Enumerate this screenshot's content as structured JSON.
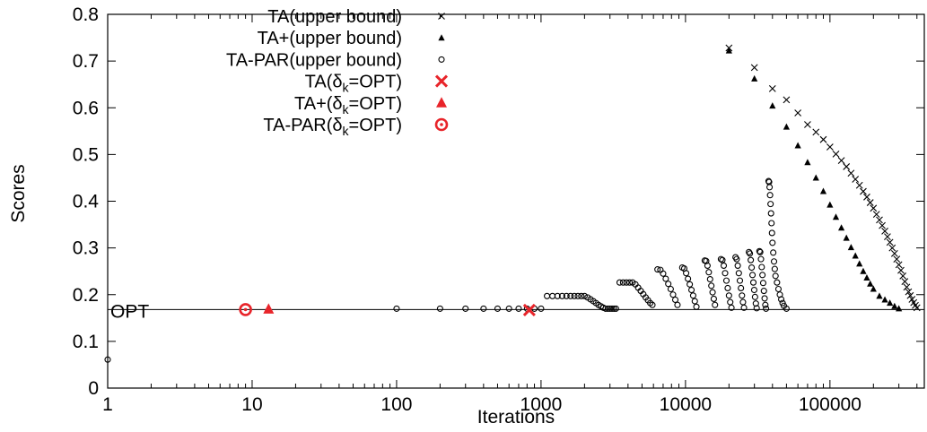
{
  "chart_data": {
    "type": "scatter",
    "title": "",
    "xlabel": "Iterations",
    "ylabel": "Scores",
    "xscale": "log",
    "xlim": [
      1,
      450000
    ],
    "ylim": [
      0,
      0.8
    ],
    "x_ticks": [
      1,
      10,
      100,
      1000,
      10000,
      100000
    ],
    "x_tick_labels": [
      "1",
      "10",
      "100",
      "1000",
      "10000",
      "100000"
    ],
    "y_ticks": [
      0,
      0.1,
      0.2,
      0.3,
      0.4,
      0.5,
      0.6,
      0.7,
      0.8
    ],
    "y_tick_labels": [
      "0",
      "0.1",
      "0.2",
      "0.3",
      "0.4",
      "0.5",
      "0.6",
      "0.7",
      "0.8"
    ],
    "grid": false,
    "legend_position": "top-left",
    "reference_line": {
      "label": "OPT",
      "y": 0.168
    },
    "legend": [
      {
        "main": "TA(upper bound)",
        "sub": "",
        "tail": ""
      },
      {
        "main": "TA+(upper bound)",
        "sub": "",
        "tail": ""
      },
      {
        "main": "TA-PAR(upper bound)",
        "sub": "",
        "tail": ""
      },
      {
        "main": "TA(δ",
        "sub": "k",
        "tail": "=OPT)"
      },
      {
        "main": "TA+(δ",
        "sub": "k",
        "tail": "=OPT)"
      },
      {
        "main": "TA-PAR(δ",
        "sub": "k",
        "tail": "=OPT)"
      }
    ],
    "series": [
      {
        "name": "TA(upper bound)",
        "marker": "x",
        "color": "#000000",
        "points": [
          [
            20000,
            0.728
          ],
          [
            30000,
            0.686
          ],
          [
            40000,
            0.641
          ],
          [
            50000,
            0.617
          ],
          [
            60000,
            0.589
          ],
          [
            70000,
            0.564
          ],
          [
            80000,
            0.548
          ],
          [
            90000,
            0.532
          ],
          [
            100000,
            0.516
          ],
          [
            110000,
            0.501
          ],
          [
            120000,
            0.487
          ],
          [
            130000,
            0.474
          ],
          [
            140000,
            0.46
          ],
          [
            150000,
            0.447
          ],
          [
            160000,
            0.434
          ],
          [
            170000,
            0.421
          ],
          [
            180000,
            0.409
          ],
          [
            190000,
            0.397
          ],
          [
            200000,
            0.385
          ],
          [
            210000,
            0.372
          ],
          [
            220000,
            0.36
          ],
          [
            230000,
            0.348
          ],
          [
            240000,
            0.336
          ],
          [
            250000,
            0.324
          ],
          [
            260000,
            0.312
          ],
          [
            270000,
            0.3
          ],
          [
            280000,
            0.288
          ],
          [
            290000,
            0.276
          ],
          [
            300000,
            0.264
          ],
          [
            310000,
            0.252
          ],
          [
            320000,
            0.24
          ],
          [
            330000,
            0.228
          ],
          [
            340000,
            0.216
          ],
          [
            350000,
            0.206
          ],
          [
            360000,
            0.198
          ],
          [
            370000,
            0.19
          ],
          [
            380000,
            0.183
          ],
          [
            390000,
            0.177
          ],
          [
            400000,
            0.172
          ]
        ]
      },
      {
        "name": "TA+(upper bound)",
        "marker": "triangle",
        "color": "#000000",
        "points": [
          [
            20000,
            0.722
          ],
          [
            30000,
            0.662
          ],
          [
            40000,
            0.604
          ],
          [
            50000,
            0.559
          ],
          [
            60000,
            0.519
          ],
          [
            70000,
            0.483
          ],
          [
            80000,
            0.45
          ],
          [
            90000,
            0.421
          ],
          [
            100000,
            0.392
          ],
          [
            110000,
            0.366
          ],
          [
            120000,
            0.343
          ],
          [
            130000,
            0.321
          ],
          [
            140000,
            0.301
          ],
          [
            150000,
            0.283
          ],
          [
            160000,
            0.266
          ],
          [
            170000,
            0.25
          ],
          [
            180000,
            0.236
          ],
          [
            190000,
            0.223
          ],
          [
            200000,
            0.212
          ],
          [
            220000,
            0.197
          ],
          [
            240000,
            0.189
          ],
          [
            260000,
            0.182
          ],
          [
            280000,
            0.175
          ],
          [
            300000,
            0.17
          ]
        ]
      },
      {
        "name": "TA-PAR(upper bound)",
        "marker": "circle",
        "color": "#000000",
        "points": [
          [
            1,
            0.061
          ],
          [
            100,
            0.17
          ],
          [
            200,
            0.17
          ],
          [
            300,
            0.17
          ],
          [
            400,
            0.17
          ],
          [
            500,
            0.17
          ],
          [
            600,
            0.17
          ],
          [
            700,
            0.17
          ],
          [
            800,
            0.17
          ],
          [
            900,
            0.17
          ],
          [
            1000,
            0.17
          ],
          [
            1100,
            0.197
          ],
          [
            1200,
            0.197
          ],
          [
            1300,
            0.197
          ],
          [
            1400,
            0.197
          ],
          [
            1500,
            0.197
          ],
          [
            1600,
            0.197
          ],
          [
            1700,
            0.197
          ],
          [
            1800,
            0.197
          ],
          [
            1900,
            0.197
          ],
          [
            2000,
            0.197
          ],
          [
            2100,
            0.194
          ],
          [
            2200,
            0.19
          ],
          [
            2300,
            0.186
          ],
          [
            2400,
            0.182
          ],
          [
            2500,
            0.178
          ],
          [
            2600,
            0.175
          ],
          [
            2700,
            0.172
          ],
          [
            2800,
            0.17
          ],
          [
            2900,
            0.17
          ],
          [
            3000,
            0.17
          ],
          [
            3100,
            0.17
          ],
          [
            3200,
            0.17
          ],
          [
            3300,
            0.17
          ],
          [
            3500,
            0.226
          ],
          [
            3700,
            0.226
          ],
          [
            3900,
            0.226
          ],
          [
            4100,
            0.226
          ],
          [
            4300,
            0.226
          ],
          [
            4500,
            0.222
          ],
          [
            4700,
            0.215
          ],
          [
            4900,
            0.208
          ],
          [
            5100,
            0.201
          ],
          [
            5300,
            0.194
          ],
          [
            5500,
            0.188
          ],
          [
            5700,
            0.182
          ],
          [
            5900,
            0.178
          ],
          [
            6400,
            0.254
          ],
          [
            6700,
            0.253
          ],
          [
            7000,
            0.245
          ],
          [
            7300,
            0.234
          ],
          [
            7600,
            0.223
          ],
          [
            7900,
            0.212
          ],
          [
            8200,
            0.2
          ],
          [
            8500,
            0.189
          ],
          [
            8800,
            0.178
          ],
          [
            9500,
            0.258
          ],
          [
            9800,
            0.256
          ],
          [
            10100,
            0.246
          ],
          [
            10400,
            0.234
          ],
          [
            10700,
            0.222
          ],
          [
            11000,
            0.21
          ],
          [
            11300,
            0.198
          ],
          [
            11600,
            0.186
          ],
          [
            11900,
            0.174
          ],
          [
            13600,
            0.273
          ],
          [
            13900,
            0.272
          ],
          [
            14200,
            0.262
          ],
          [
            14500,
            0.248
          ],
          [
            14800,
            0.233
          ],
          [
            15100,
            0.219
          ],
          [
            15400,
            0.205
          ],
          [
            15700,
            0.191
          ],
          [
            16000,
            0.178
          ],
          [
            17600,
            0.276
          ],
          [
            18000,
            0.274
          ],
          [
            18400,
            0.262
          ],
          [
            18800,
            0.246
          ],
          [
            19200,
            0.23
          ],
          [
            19600,
            0.214
          ],
          [
            20000,
            0.198
          ],
          [
            20400,
            0.184
          ],
          [
            20800,
            0.172
          ],
          [
            22200,
            0.28
          ],
          [
            22600,
            0.276
          ],
          [
            23000,
            0.262
          ],
          [
            23400,
            0.246
          ],
          [
            23800,
            0.23
          ],
          [
            24200,
            0.214
          ],
          [
            24600,
            0.198
          ],
          [
            25000,
            0.184
          ],
          [
            25400,
            0.172
          ],
          [
            27500,
            0.291
          ],
          [
            27900,
            0.288
          ],
          [
            28300,
            0.274
          ],
          [
            28700,
            0.258
          ],
          [
            29100,
            0.242
          ],
          [
            29500,
            0.226
          ],
          [
            29900,
            0.21
          ],
          [
            30300,
            0.195
          ],
          [
            30700,
            0.181
          ],
          [
            31100,
            0.171
          ],
          [
            32500,
            0.293
          ],
          [
            32900,
            0.291
          ],
          [
            33300,
            0.276
          ],
          [
            33700,
            0.259
          ],
          [
            34100,
            0.242
          ],
          [
            34500,
            0.225
          ],
          [
            34900,
            0.208
          ],
          [
            35300,
            0.192
          ],
          [
            35700,
            0.178
          ],
          [
            36100,
            0.17
          ],
          [
            37600,
            0.443
          ],
          [
            37900,
            0.441
          ],
          [
            38200,
            0.43
          ],
          [
            38500,
            0.413
          ],
          [
            38800,
            0.394
          ],
          [
            39100,
            0.374
          ],
          [
            39400,
            0.353
          ],
          [
            39700,
            0.332
          ],
          [
            40000,
            0.311
          ],
          [
            40500,
            0.29
          ],
          [
            41000,
            0.271
          ],
          [
            41500,
            0.255
          ],
          [
            42000,
            0.24
          ],
          [
            43000,
            0.226
          ],
          [
            44000,
            0.212
          ],
          [
            45000,
            0.2
          ],
          [
            46000,
            0.19
          ],
          [
            47000,
            0.182
          ],
          [
            48000,
            0.176
          ],
          [
            50000,
            0.17
          ]
        ]
      },
      {
        "name": "TA(δk=OPT)",
        "marker": "x-bold",
        "color": "#e8242a",
        "points": [
          [
            830,
            0.167
          ]
        ]
      },
      {
        "name": "TA+(δk=OPT)",
        "marker": "triangle-bold",
        "color": "#e8242a",
        "points": [
          [
            13,
            0.169
          ]
        ]
      },
      {
        "name": "TA-PAR(δk=OPT)",
        "marker": "circle-dot",
        "color": "#e8242a",
        "points": [
          [
            9,
            0.168
          ]
        ]
      }
    ]
  }
}
